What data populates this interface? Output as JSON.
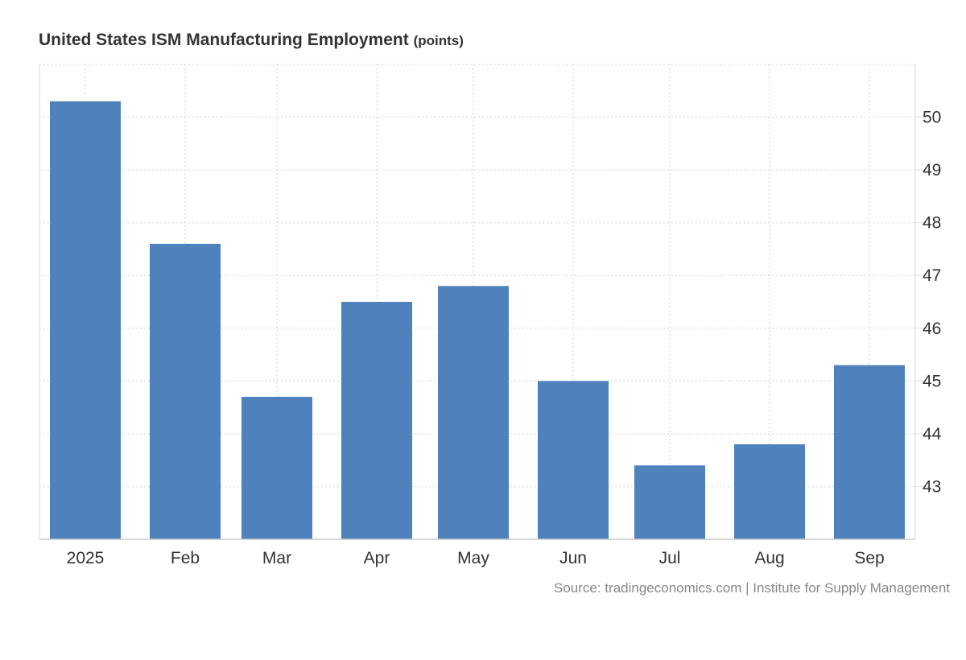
{
  "chart_data": {
    "type": "bar",
    "title": "United States ISM Manufacturing Employment",
    "unit": "(points)",
    "categories": [
      "2025",
      "Feb",
      "Mar",
      "Apr",
      "May",
      "Jun",
      "Jul",
      "Aug",
      "Sep"
    ],
    "values": [
      50.3,
      47.6,
      44.7,
      46.5,
      46.8,
      45.0,
      43.4,
      43.8,
      45.3
    ],
    "ylim": [
      42,
      51
    ],
    "yticks": [
      43,
      44,
      45,
      46,
      47,
      48,
      49,
      50
    ],
    "xlabel": "",
    "ylabel": "",
    "grid": true,
    "bar_color": "#4f81bd",
    "source": "Source: tradingeconomics.com | Institute for Supply Management"
  }
}
